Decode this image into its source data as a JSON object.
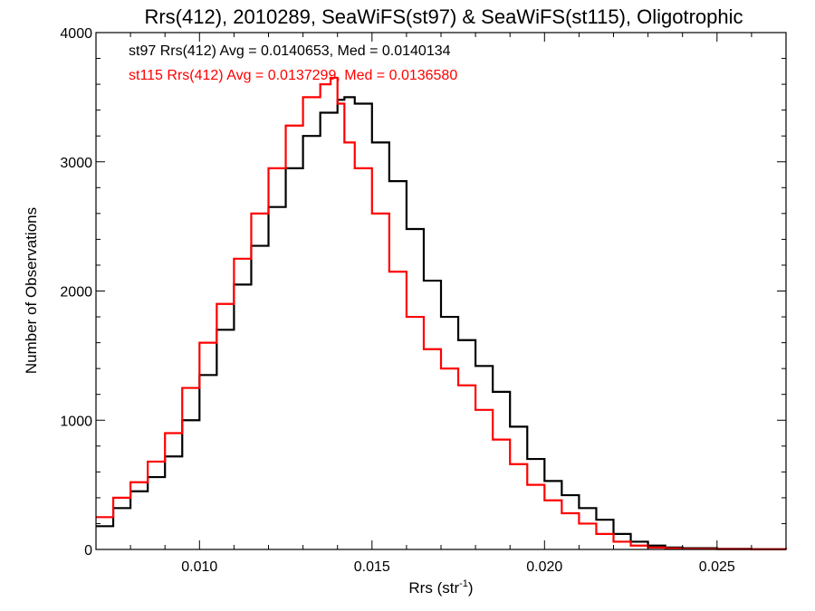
{
  "chart_data": {
    "type": "line",
    "title": "Rrs(412), 2010289, SeaWiFS(st97) & SeaWiFS(st115), Oligotrophic",
    "xlabel_main": "Rrs (str",
    "xlabel_sup": "-1",
    "xlabel_end": ")",
    "ylabel": "Number of Observations",
    "xlim": [
      0.007,
      0.027
    ],
    "ylim": [
      0,
      4000
    ],
    "xticks": [
      0.01,
      0.015,
      0.02,
      0.025
    ],
    "xtick_labels": [
      "0.010",
      "0.015",
      "0.020",
      "0.025"
    ],
    "yticks": [
      0,
      1000,
      2000,
      3000,
      4000
    ],
    "ytick_labels": [
      "0",
      "1000",
      "2000",
      "3000",
      "4000"
    ],
    "grid": false,
    "annotations": [
      {
        "text": "st97 Rrs(412) Avg = 0.0140653, Med = 0.0140134",
        "color": "#000000"
      },
      {
        "text": "st115 Rrs(412) Avg = 0.0137299, Med = 0.0136580",
        "color": "#ff0000"
      }
    ],
    "series": [
      {
        "color": "#000000",
        "x": [
          0.007,
          0.0075,
          0.008,
          0.0085,
          0.009,
          0.0095,
          0.01,
          0.0105,
          0.011,
          0.0115,
          0.012,
          0.0125,
          0.013,
          0.0135,
          0.014,
          0.0142,
          0.0145,
          0.015,
          0.0155,
          0.016,
          0.0165,
          0.017,
          0.0175,
          0.018,
          0.0185,
          0.019,
          0.0195,
          0.02,
          0.0205,
          0.021,
          0.0215,
          0.022,
          0.0225,
          0.023,
          0.0235,
          0.024,
          0.025,
          0.026,
          0.027
        ],
        "values": [
          180,
          320,
          450,
          560,
          720,
          1000,
          1350,
          1700,
          2050,
          2350,
          2650,
          2950,
          3200,
          3380,
          3480,
          3500,
          3450,
          3150,
          2850,
          2480,
          2080,
          1800,
          1620,
          1420,
          1220,
          950,
          700,
          530,
          420,
          320,
          230,
          120,
          60,
          30,
          15,
          10,
          5,
          2,
          0
        ]
      },
      {
        "color": "#ff0000",
        "x": [
          0.007,
          0.0075,
          0.008,
          0.0085,
          0.009,
          0.0095,
          0.01,
          0.0105,
          0.011,
          0.0115,
          0.012,
          0.0125,
          0.013,
          0.0135,
          0.0138,
          0.014,
          0.0142,
          0.0145,
          0.015,
          0.0155,
          0.016,
          0.0165,
          0.017,
          0.0175,
          0.018,
          0.0185,
          0.019,
          0.0195,
          0.02,
          0.0205,
          0.021,
          0.0215,
          0.022,
          0.0225,
          0.023,
          0.0235,
          0.024,
          0.025,
          0.026,
          0.027
        ],
        "values": [
          250,
          400,
          520,
          680,
          900,
          1250,
          1600,
          1900,
          2250,
          2600,
          2950,
          3280,
          3500,
          3600,
          3650,
          3450,
          3150,
          2950,
          2600,
          2150,
          1800,
          1550,
          1400,
          1270,
          1080,
          850,
          660,
          500,
          380,
          280,
          200,
          120,
          60,
          30,
          15,
          8,
          4,
          2,
          1,
          0
        ]
      }
    ]
  }
}
